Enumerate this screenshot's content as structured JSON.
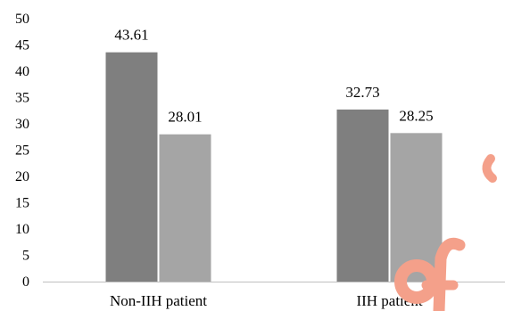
{
  "chart_data": {
    "type": "bar",
    "categories": [
      "Non-IIH patient",
      "IIH patient"
    ],
    "series": [
      {
        "values": [
          43.61,
          32.73
        ],
        "color": "#7f7f7f"
      },
      {
        "values": [
          28.01,
          28.25
        ],
        "color": "#a5a5a5"
      }
    ],
    "data_labels": [
      [
        "43.61",
        "32.73"
      ],
      [
        "28.01",
        "28.25"
      ]
    ],
    "ylim": [
      0,
      50
    ],
    "yticks": [
      0,
      5,
      10,
      15,
      20,
      25,
      30,
      35,
      40,
      45,
      50
    ],
    "title": "",
    "xlabel": "",
    "ylabel": "",
    "grid": false,
    "axis_color": "#bfbfbf"
  },
  "watermark": {
    "color": "#f4a08a"
  }
}
